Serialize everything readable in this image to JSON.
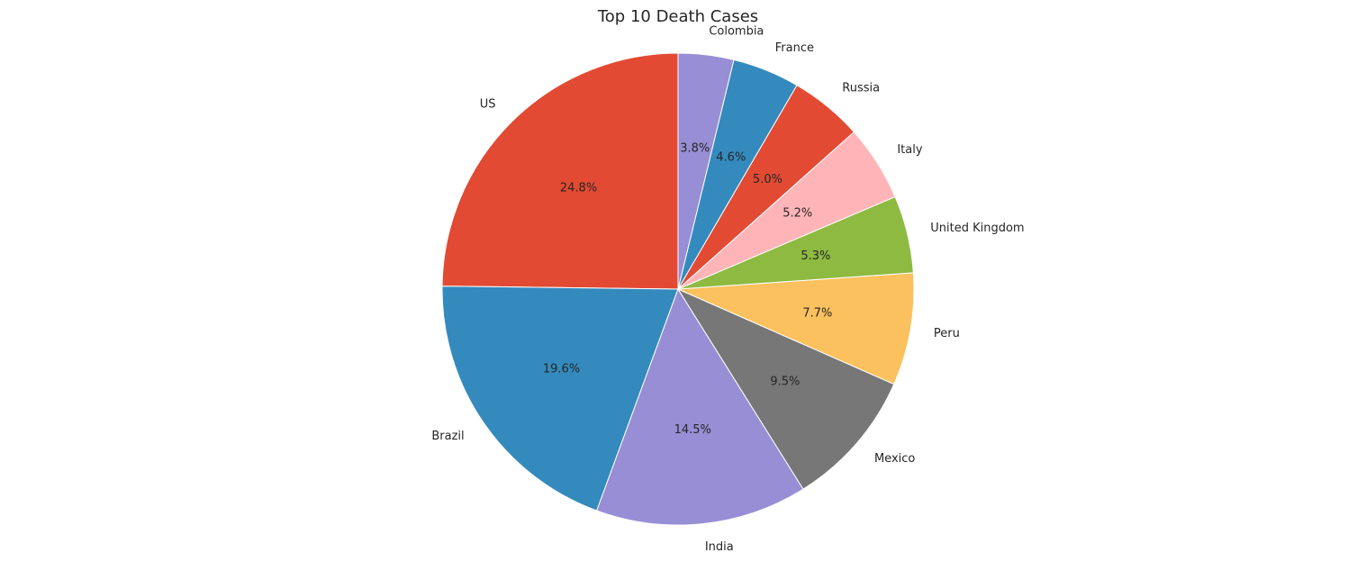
{
  "chart_data": {
    "type": "pie",
    "title": "Top 10 Death Cases",
    "categories": [
      "US",
      "Brazil",
      "India",
      "Mexico",
      "Peru",
      "United Kingdom",
      "Italy",
      "Russia",
      "France",
      "Colombia"
    ],
    "values": [
      24.8,
      19.6,
      14.5,
      9.5,
      7.7,
      5.3,
      5.2,
      5.0,
      4.6,
      3.8
    ],
    "value_labels": [
      "24.8%",
      "19.6%",
      "14.5%",
      "9.5%",
      "7.7%",
      "5.3%",
      "5.2%",
      "5.0%",
      "4.6%",
      "3.8%"
    ],
    "colors": [
      "#E24A33",
      "#348ABD",
      "#988ED5",
      "#777777",
      "#FBC15E",
      "#8EBA42",
      "#FFB5B8",
      "#E24A33",
      "#348ABD",
      "#988ED5"
    ],
    "start_angle_deg": 90,
    "direction": "counterclockwise",
    "legend": "none"
  }
}
